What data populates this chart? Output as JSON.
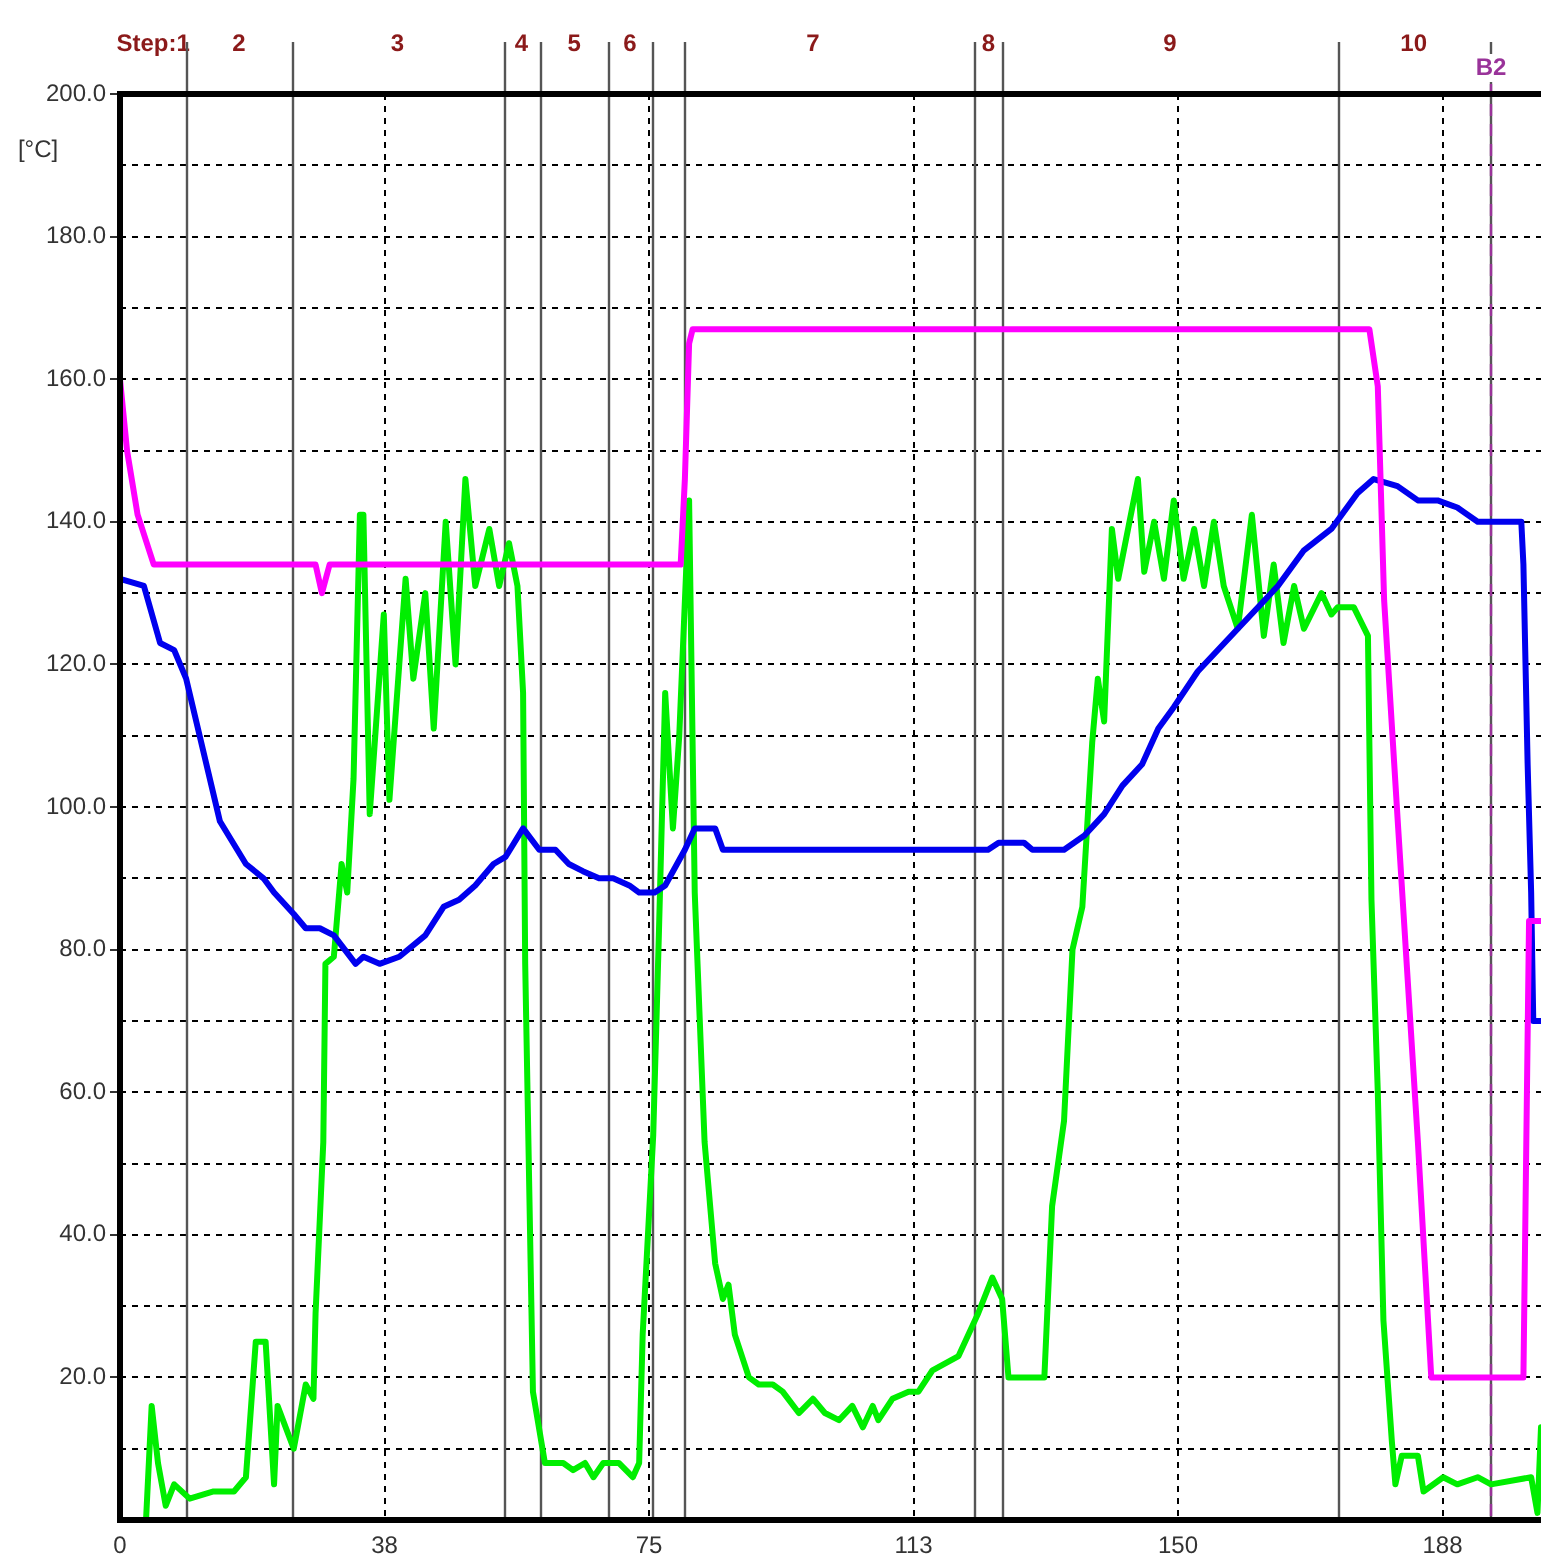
{
  "chart_data": {
    "type": "line",
    "ylabel": "[°C]",
    "xlim": [
      0,
      202
    ],
    "ylim": [
      0,
      200
    ],
    "xticks": [
      0,
      {
        "value": 37.6,
        "label": "38"
      },
      {
        "value": 75.2,
        "label": "75"
      },
      {
        "value": 112.8,
        "label": "113"
      },
      {
        "value": 150.4,
        "label": "150"
      },
      {
        "value": 188,
        "label": "188"
      }
    ],
    "yticks": [
      {
        "value": 0,
        "label": null
      },
      {
        "value": 10,
        "label": null
      },
      {
        "value": 20,
        "label": "20.0"
      },
      {
        "value": 30,
        "label": null
      },
      {
        "value": 40,
        "label": "40.0"
      },
      {
        "value": 50,
        "label": null
      },
      {
        "value": 60,
        "label": "60.0"
      },
      {
        "value": 70,
        "label": null
      },
      {
        "value": 80,
        "label": "80.0"
      },
      {
        "value": 90,
        "label": null
      },
      {
        "value": 100,
        "label": "100.0"
      },
      {
        "value": 110,
        "label": null
      },
      {
        "value": 120,
        "label": "120.0"
      },
      {
        "value": 130,
        "label": null
      },
      {
        "value": 140,
        "label": "140.0"
      },
      {
        "value": 150,
        "label": null
      },
      {
        "value": 160,
        "label": "160.0"
      },
      {
        "value": 170,
        "label": null
      },
      {
        "value": 180,
        "label": "180.0"
      },
      {
        "value": 190,
        "label": null
      },
      {
        "value": 200,
        "label": "200.0"
      }
    ],
    "grid": true,
    "marker": "none",
    "line_style": "solid",
    "legend": false,
    "series": [
      {
        "color": "#ff00ff",
        "x": [
          0,
          1,
          2.5,
          4.8,
          27.8,
          28.7,
          29.8,
          79.7,
          80.3,
          80.9,
          81.4,
          177.6,
          178.8,
          179.7,
          181.7,
          184.5,
          186.4,
          199.5,
          200.3,
          202
        ],
        "values": [
          160,
          150,
          141,
          134,
          134,
          130,
          134,
          134,
          146,
          165,
          167,
          167,
          159,
          129,
          97,
          53,
          20,
          20,
          84,
          84
        ]
      },
      {
        "color": "#0000ee",
        "x": [
          0,
          3.4,
          5.7,
          7.7,
          9.4,
          14.2,
          17.9,
          20.4,
          21.9,
          24.7,
          26.4,
          28.4,
          30.4,
          33.5,
          34.6,
          36.9,
          39.7,
          43.4,
          46,
          48.2,
          50.5,
          53.1,
          54.8,
          57.3,
          59.6,
          61.9,
          63.8,
          65.8,
          68.1,
          70.1,
          72.4,
          73.8,
          76,
          77.5,
          80.3,
          81.7,
          84.6,
          85.7,
          98.5,
          99.3,
          123.4,
          124.9,
          128.5,
          129.7,
          134.2,
          137.1,
          139.9,
          142.5,
          145.3,
          147.6,
          149.8,
          153.2,
          158.9,
          164.6,
          168.3,
          172.2,
          175.9,
          178.2,
          181.6,
          184.5,
          187.3,
          190.1,
          193,
          199.2,
          199.5,
          200.1,
          200.6,
          200.9,
          202
        ],
        "values": [
          132,
          131,
          123,
          122,
          118,
          98,
          92,
          90,
          88,
          85,
          83,
          83,
          82,
          78,
          79,
          78,
          79,
          82,
          86,
          87,
          89,
          92,
          93,
          97,
          94,
          94,
          92,
          91,
          90,
          90,
          89,
          88,
          88,
          89,
          94,
          97,
          97,
          94,
          94,
          94,
          94,
          95,
          95,
          94,
          94,
          96,
          99,
          103,
          106,
          111,
          114,
          119,
          125,
          131,
          136,
          139,
          144,
          146,
          145,
          143,
          143,
          142,
          140,
          140,
          134,
          106,
          88,
          70,
          70
        ]
      },
      {
        "color": "#00ee00",
        "x": [
          0,
          3.7,
          4.5,
          5.4,
          6.5,
          7.7,
          9.9,
          13.3,
          16.2,
          17.9,
          19.3,
          20.7,
          21.9,
          22.4,
          24.7,
          26.4,
          27.5,
          27.8,
          28.9,
          29.2,
          30.4,
          31.5,
          32.3,
          33.2,
          34.1,
          34.6,
          35.5,
          37.5,
          38.3,
          39.7,
          40.6,
          41.7,
          43.4,
          44.6,
          46.3,
          47.7,
          49.1,
          50.5,
          52.5,
          53.9,
          55.3,
          56.5,
          57.3,
          57.6,
          58.7,
          60.4,
          63,
          64.4,
          66.1,
          67.3,
          68.7,
          70.9,
          72.9,
          73.8,
          74.3,
          75.8,
          76.6,
          77.5,
          78.6,
          79.5,
          80.9,
          81.7,
          83.1,
          84.6,
          85.7,
          86.5,
          87.4,
          89.4,
          90.8,
          92.8,
          94.2,
          96.5,
          98.5,
          100.2,
          102.2,
          104.1,
          105.6,
          107,
          107.8,
          109.8,
          112.1,
          113.5,
          115.5,
          119.2,
          122,
          124,
          125.4,
          126.3,
          131.4,
          132.5,
          134.2,
          135.4,
          136.8,
          138.2,
          139,
          139.9,
          141,
          141.9,
          144.7,
          145.6,
          147,
          148.4,
          149.8,
          151.2,
          152.7,
          154.1,
          155.5,
          156.9,
          158.9,
          160.9,
          162.6,
          164,
          165.4,
          166.9,
          168.3,
          170.8,
          172.2,
          173.1,
          175.4,
          177.4,
          177.9,
          178.8,
          179.6,
          180.8,
          181.3,
          182.2,
          184.5,
          185.3,
          188.1,
          190.1,
          193,
          194.9,
          200.6,
          201.5,
          202
        ],
        "values": [
          0,
          0,
          16,
          8,
          2,
          5,
          3,
          4,
          4,
          6,
          25,
          25,
          5,
          16,
          10,
          19,
          17,
          29,
          53,
          78,
          79,
          92,
          88,
          104,
          141,
          141,
          99,
          127,
          101,
          120,
          132,
          118,
          130,
          111,
          140,
          120,
          146,
          131,
          139,
          131,
          137,
          131,
          116,
          78,
          18,
          8,
          8,
          7,
          8,
          6,
          8,
          8,
          6,
          8,
          26,
          54,
          82,
          116,
          97,
          110,
          143,
          88,
          53,
          36,
          31,
          33,
          26,
          20,
          19,
          19,
          18,
          15,
          17,
          15,
          14,
          16,
          13,
          16,
          14,
          17,
          18,
          18,
          21,
          23,
          29,
          34,
          31,
          20,
          20,
          44,
          56,
          80,
          86,
          109,
          118,
          112,
          139,
          132,
          146,
          133,
          140,
          132,
          143,
          132,
          139,
          131,
          140,
          131,
          125,
          141,
          124,
          134,
          123,
          131,
          125,
          130,
          127,
          128,
          128,
          124,
          87,
          60,
          28,
          11,
          5,
          9,
          9,
          4,
          6,
          5,
          6,
          5,
          6,
          1,
          13
        ]
      }
    ],
    "annotations": [
      "Step:1",
      "2",
      "3",
      "4",
      "5",
      "6",
      "7",
      "8",
      "9",
      "10"
    ],
    "ref_lines": [
      {
        "axis": "x",
        "value": 9.4,
        "label": null,
        "color": "#555555"
      },
      {
        "axis": "x",
        "value": 24.4,
        "label": null,
        "color": "#555555"
      },
      {
        "axis": "x",
        "value": 54.5,
        "label": null,
        "color": "#555555"
      },
      {
        "axis": "x",
        "value": 59.6,
        "label": null,
        "color": "#555555"
      },
      {
        "axis": "x",
        "value": 69.5,
        "label": null,
        "color": "#555555"
      },
      {
        "axis": "x",
        "value": 75.5,
        "label": null,
        "color": "#555555"
      },
      {
        "axis": "x",
        "value": 121.5,
        "label": null,
        "color": "#555555"
      },
      {
        "axis": "x",
        "value": 125.4,
        "label": null,
        "color": "#555555"
      },
      {
        "axis": "x",
        "value": 173.1,
        "label": null,
        "color": "#555555"
      },
      {
        "axis": "x",
        "value": 194.7,
        "label": null,
        "color": "#555555"
      },
      {
        "axis": "x",
        "value": 194.7,
        "label": "B2",
        "color": "#993399",
        "line_style": "dashed"
      },
      {
        "axis": "x",
        "value": 80.3,
        "label": null,
        "color": "#555555"
      }
    ]
  }
}
